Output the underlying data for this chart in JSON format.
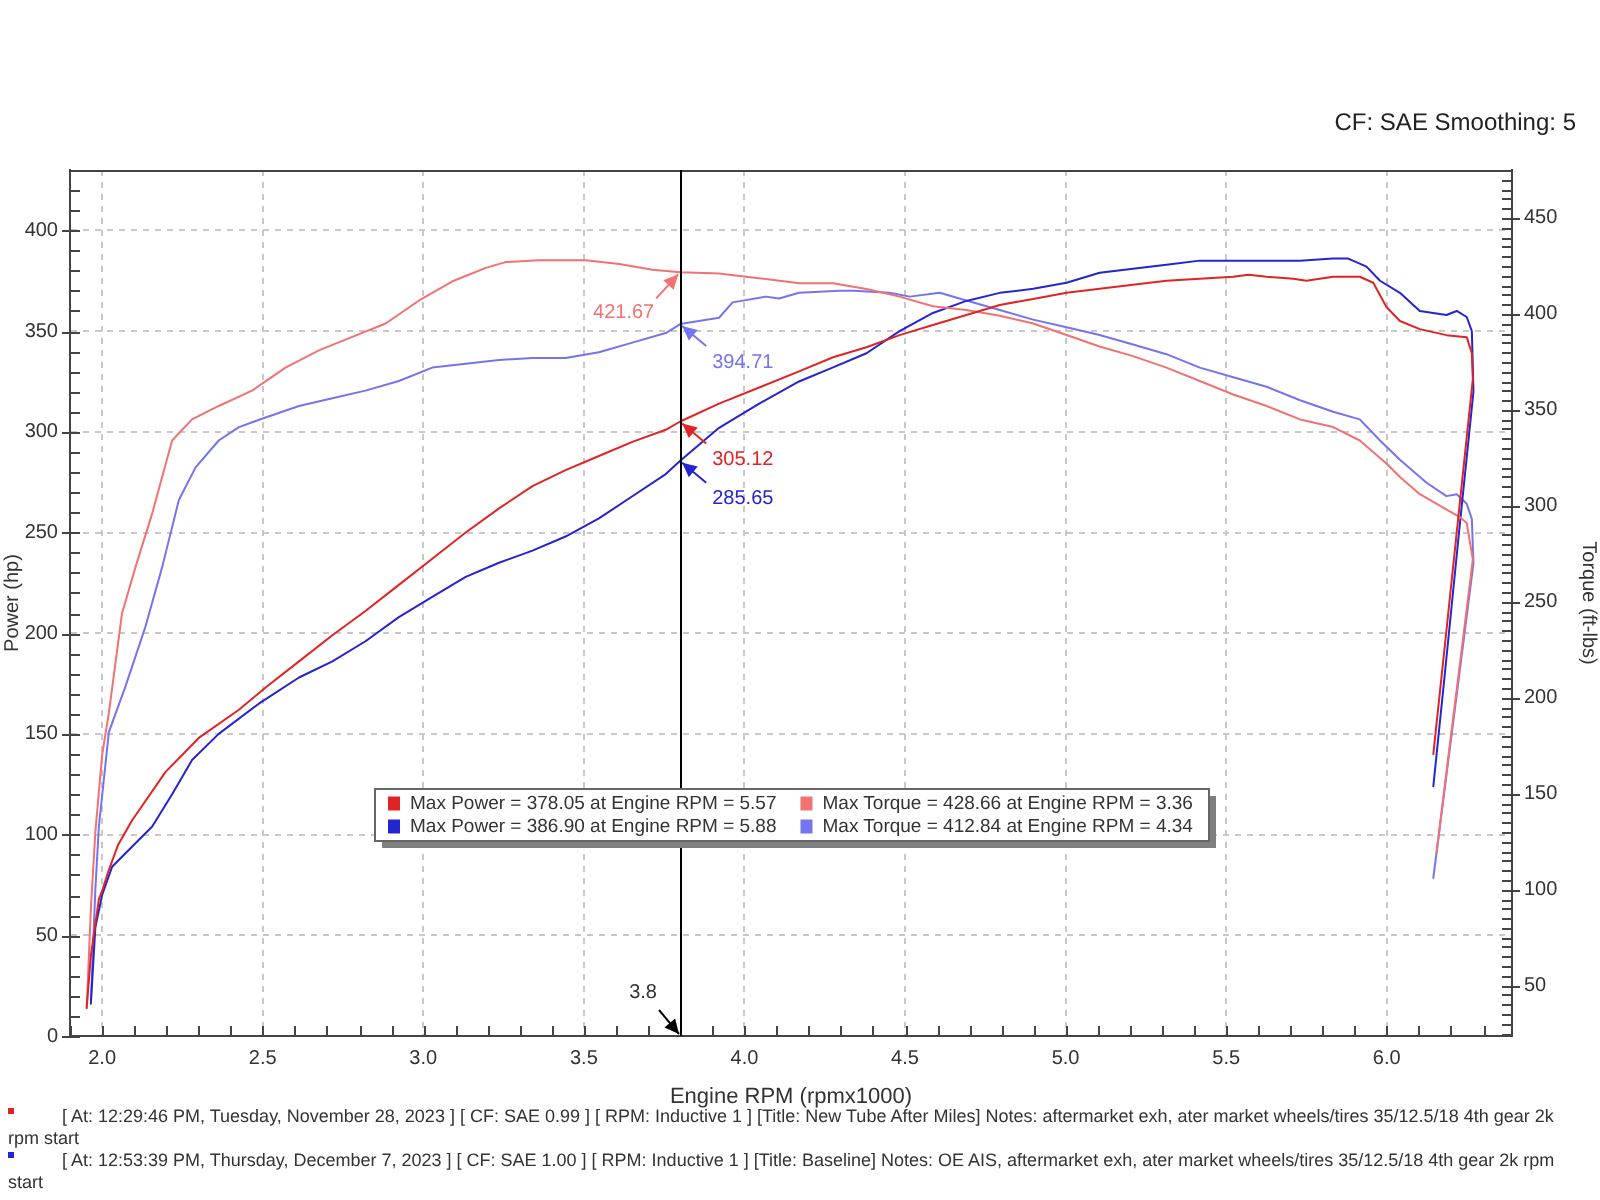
{
  "chart_data": {
    "type": "line",
    "subtitle": "CF: SAE Smoothing: 5",
    "xlabel": "Engine RPM (rpmx1000)",
    "ylabel": "Power (hp)",
    "y2label": "Torque (ft-lbs)",
    "xlim": [
      1.9,
      6.39
    ],
    "ylim": [
      0,
      430
    ],
    "y2lim": [
      23.6,
      475
    ],
    "xticks": [
      {
        "value": 1.9,
        "label": null
      },
      {
        "value": 2,
        "label": "2.0"
      },
      {
        "value": 2.1,
        "label": null
      },
      {
        "value": 2.2,
        "label": null
      },
      {
        "value": 2.3,
        "label": null
      },
      {
        "value": 2.4,
        "label": null
      },
      {
        "value": 2.5,
        "label": "2.5"
      },
      {
        "value": 2.6,
        "label": null
      },
      {
        "value": 2.7,
        "label": null
      },
      {
        "value": 2.8,
        "label": null
      },
      {
        "value": 2.9,
        "label": null
      },
      {
        "value": 3,
        "label": "3.0"
      },
      {
        "value": 3.1,
        "label": null
      },
      {
        "value": 3.2,
        "label": null
      },
      {
        "value": 3.3,
        "label": null
      },
      {
        "value": 3.4,
        "label": null
      },
      {
        "value": 3.5,
        "label": "3.5"
      },
      {
        "value": 3.6,
        "label": null
      },
      {
        "value": 3.7,
        "label": null
      },
      {
        "value": 3.8,
        "label": null
      },
      {
        "value": 3.9,
        "label": null
      },
      {
        "value": 4,
        "label": "4.0"
      },
      {
        "value": 4.1,
        "label": null
      },
      {
        "value": 4.2,
        "label": null
      },
      {
        "value": 4.3,
        "label": null
      },
      {
        "value": 4.4,
        "label": null
      },
      {
        "value": 4.5,
        "label": "4.5"
      },
      {
        "value": 4.6,
        "label": null
      },
      {
        "value": 4.7,
        "label": null
      },
      {
        "value": 4.8,
        "label": null
      },
      {
        "value": 4.9,
        "label": null
      },
      {
        "value": 5,
        "label": "5.0"
      },
      {
        "value": 5.1,
        "label": null
      },
      {
        "value": 5.2,
        "label": null
      },
      {
        "value": 5.3,
        "label": null
      },
      {
        "value": 5.4,
        "label": null
      },
      {
        "value": 5.5,
        "label": "5.5"
      },
      {
        "value": 5.6,
        "label": null
      },
      {
        "value": 5.7,
        "label": null
      },
      {
        "value": 5.8,
        "label": null
      },
      {
        "value": 5.9,
        "label": null
      },
      {
        "value": 6,
        "label": "6.0"
      },
      {
        "value": 6.1,
        "label": null
      },
      {
        "value": 6.2,
        "label": null
      },
      {
        "value": 6.3,
        "label": null
      }
    ],
    "yticks": [
      0,
      {
        "value": 10,
        "label": null
      },
      {
        "value": 20,
        "label": null
      },
      {
        "value": 30,
        "label": null
      },
      {
        "value": 40,
        "label": null
      },
      50,
      {
        "value": 60,
        "label": null
      },
      {
        "value": 70,
        "label": null
      },
      {
        "value": 80,
        "label": null
      },
      {
        "value": 90,
        "label": null
      },
      100,
      {
        "value": 110,
        "label": null
      },
      {
        "value": 120,
        "label": null
      },
      {
        "value": 130,
        "label": null
      },
      {
        "value": 140,
        "label": null
      },
      150,
      {
        "value": 160,
        "label": null
      },
      {
        "value": 170,
        "label": null
      },
      {
        "value": 180,
        "label": null
      },
      {
        "value": 190,
        "label": null
      },
      200,
      {
        "value": 210,
        "label": null
      },
      {
        "value": 220,
        "label": null
      },
      {
        "value": 230,
        "label": null
      },
      {
        "value": 240,
        "label": null
      },
      250,
      {
        "value": 260,
        "label": null
      },
      {
        "value": 270,
        "label": null
      },
      {
        "value": 280,
        "label": null
      },
      {
        "value": 290,
        "label": null
      },
      300,
      {
        "value": 310,
        "label": null
      },
      {
        "value": 320,
        "label": null
      },
      {
        "value": 330,
        "label": null
      },
      {
        "value": 340,
        "label": null
      },
      350,
      {
        "value": 360,
        "label": null
      },
      {
        "value": 370,
        "label": null
      },
      {
        "value": 380,
        "label": null
      },
      {
        "value": 390,
        "label": null
      },
      400,
      {
        "value": 410,
        "label": null
      },
      {
        "value": 420,
        "label": null
      },
      {
        "value": 430,
        "label": null
      }
    ],
    "y2ticks": [
      {
        "value": 25,
        "label": null
      },
      {
        "value": 30,
        "label": null
      },
      {
        "value": 35,
        "label": null
      },
      {
        "value": 40,
        "label": null
      },
      {
        "value": 45,
        "label": null
      },
      50,
      {
        "value": 55,
        "label": null
      },
      {
        "value": 60,
        "label": null
      },
      {
        "value": 65,
        "label": null
      },
      {
        "value": 70,
        "label": null
      },
      {
        "value": 75,
        "label": null
      },
      {
        "value": 80,
        "label": null
      },
      {
        "value": 85,
        "label": null
      },
      {
        "value": 90,
        "label": null
      },
      {
        "value": 95,
        "label": null
      },
      100,
      {
        "value": 105,
        "label": null
      },
      {
        "value": 110,
        "label": null
      },
      {
        "value": 115,
        "label": null
      },
      {
        "value": 120,
        "label": null
      },
      {
        "value": 125,
        "label": null
      },
      {
        "value": 130,
        "label": null
      },
      {
        "value": 135,
        "label": null
      },
      {
        "value": 140,
        "label": null
      },
      {
        "value": 145,
        "label": null
      },
      150,
      {
        "value": 155,
        "label": null
      },
      {
        "value": 160,
        "label": null
      },
      {
        "value": 165,
        "label": null
      },
      {
        "value": 170,
        "label": null
      },
      {
        "value": 175,
        "label": null
      },
      {
        "value": 180,
        "label": null
      },
      {
        "value": 185,
        "label": null
      },
      {
        "value": 190,
        "label": null
      },
      {
        "value": 195,
        "label": null
      },
      200,
      {
        "value": 205,
        "label": null
      },
      {
        "value": 210,
        "label": null
      },
      {
        "value": 215,
        "label": null
      },
      {
        "value": 220,
        "label": null
      },
      {
        "value": 225,
        "label": null
      },
      {
        "value": 230,
        "label": null
      },
      {
        "value": 235,
        "label": null
      },
      {
        "value": 240,
        "label": null
      },
      {
        "value": 245,
        "label": null
      },
      250,
      {
        "value": 255,
        "label": null
      },
      {
        "value": 260,
        "label": null
      },
      {
        "value": 265,
        "label": null
      },
      {
        "value": 270,
        "label": null
      },
      {
        "value": 275,
        "label": null
      },
      {
        "value": 280,
        "label": null
      },
      {
        "value": 285,
        "label": null
      },
      {
        "value": 290,
        "label": null
      },
      {
        "value": 295,
        "label": null
      },
      300,
      {
        "value": 305,
        "label": null
      },
      {
        "value": 310,
        "label": null
      },
      {
        "value": 315,
        "label": null
      },
      {
        "value": 320,
        "label": null
      },
      {
        "value": 325,
        "label": null
      },
      {
        "value": 330,
        "label": null
      },
      {
        "value": 335,
        "label": null
      },
      {
        "value": 340,
        "label": null
      },
      {
        "value": 345,
        "label": null
      },
      350,
      {
        "value": 355,
        "label": null
      },
      {
        "value": 360,
        "label": null
      },
      {
        "value": 365,
        "label": null
      },
      {
        "value": 370,
        "label": null
      },
      {
        "value": 375,
        "label": null
      },
      {
        "value": 380,
        "label": null
      },
      {
        "value": 385,
        "label": null
      },
      {
        "value": 390,
        "label": null
      },
      {
        "value": 395,
        "label": null
      },
      400,
      {
        "value": 405,
        "label": null
      },
      {
        "value": 410,
        "label": null
      },
      {
        "value": 415,
        "label": null
      },
      {
        "value": 420,
        "label": null
      },
      {
        "value": 425,
        "label": null
      },
      {
        "value": 430,
        "label": null
      },
      {
        "value": 435,
        "label": null
      },
      {
        "value": 440,
        "label": null
      },
      {
        "value": 445,
        "label": null
      },
      450,
      {
        "value": 455,
        "label": null
      },
      {
        "value": 460,
        "label": null
      },
      {
        "value": 465,
        "label": null
      },
      {
        "value": 470,
        "label": null
      },
      {
        "value": 475,
        "label": null
      }
    ],
    "grid": true,
    "legend": "bottom",
    "marker": "none",
    "line_style": "solid",
    "series": [
      {
        "name": "Max Power = 378.05 at Engine RPM = 5.57",
        "color": "#e02424",
        "x": [
          1.952,
          1.965,
          1.99,
          2.0,
          2.02,
          2.05,
          2.093,
          2.197,
          2.301,
          2.426,
          2.509,
          2.613,
          2.717,
          2.82,
          2.924,
          3.028,
          3.132,
          3.236,
          3.34,
          3.443,
          3.547,
          3.651,
          3.755,
          3.8,
          3.921,
          4.046,
          4.17,
          4.276,
          4.38,
          4.483,
          4.587,
          4.691,
          4.795,
          4.899,
          5.003,
          5.106,
          5.21,
          5.314,
          5.418,
          5.522,
          5.57,
          5.626,
          5.709,
          5.75,
          5.833,
          5.916,
          5.958,
          5.999,
          6.041,
          6.103,
          6.186,
          6.249,
          6.265,
          6.268,
          6.231,
          6.185,
          6.145
        ],
        "values": [
          14,
          40,
          68,
          72,
          82,
          95,
          107,
          131,
          148,
          162,
          173,
          186,
          199,
          211,
          224,
          237,
          250,
          262,
          273,
          281,
          288,
          295,
          301,
          305.12,
          314,
          322,
          330,
          337,
          342,
          348,
          353,
          358,
          363,
          366,
          369,
          371,
          373,
          375,
          376,
          377,
          378,
          377,
          376,
          375,
          377,
          377,
          374,
          362,
          355,
          351,
          348,
          347,
          339,
          326,
          270,
          200,
          140
        ],
        "value_labels": [
          null,
          null,
          null,
          null,
          null,
          null,
          null,
          null,
          null,
          null,
          null,
          null,
          null,
          null,
          null,
          null,
          null,
          null,
          null,
          null,
          null,
          null,
          null,
          "305.12",
          null,
          null,
          null,
          null,
          null,
          null,
          null,
          null,
          null,
          null,
          null,
          null,
          null,
          null,
          null,
          null,
          null,
          null,
          null,
          null,
          null,
          null,
          null,
          null,
          null,
          null,
          null,
          null,
          null,
          null,
          null,
          null,
          null
        ]
      },
      {
        "name": "Max Torque = 428.66 at Engine RPM = 3.36",
        "color": "#f07272",
        "axis": "y2",
        "x": [
          1.952,
          1.965,
          1.979,
          2.0,
          2.021,
          2.062,
          2.104,
          2.156,
          2.218,
          2.28,
          2.363,
          2.467,
          2.571,
          2.675,
          2.779,
          2.883,
          2.987,
          3.091,
          3.195,
          3.256,
          3.36,
          3.506,
          3.61,
          3.714,
          3.8,
          3.921,
          4.025,
          4.17,
          4.276,
          4.38,
          4.483,
          4.587,
          4.691,
          4.795,
          4.899,
          5.003,
          5.106,
          5.21,
          5.314,
          5.418,
          5.522,
          5.626,
          5.73,
          5.833,
          5.916,
          5.999,
          6.041,
          6.103,
          6.165,
          6.228,
          6.249,
          6.268,
          6.237,
          6.196,
          6.155
        ],
        "values": [
          38,
          90,
          130,
          170,
          192,
          244,
          268,
          296,
          334,
          345,
          352,
          360,
          372,
          381,
          388,
          395,
          407,
          417,
          424,
          427,
          428,
          428,
          426,
          423,
          421.67,
          421,
          419,
          416,
          416,
          413,
          409,
          404,
          402,
          399,
          395,
          389,
          383,
          378,
          372,
          365,
          358,
          352,
          345,
          341,
          334,
          322,
          315,
          306,
          300,
          294,
          291,
          272,
          230,
          175,
          119
        ],
        "value_labels": [
          null,
          null,
          null,
          null,
          null,
          null,
          null,
          null,
          null,
          null,
          null,
          null,
          null,
          null,
          null,
          null,
          null,
          null,
          null,
          null,
          null,
          null,
          null,
          null,
          "421.67",
          null,
          null,
          null,
          null,
          null,
          null,
          null,
          null,
          null,
          null,
          null,
          null,
          null,
          null,
          null,
          null,
          null,
          null,
          null,
          null,
          null,
          null,
          null,
          null,
          null,
          null,
          null,
          null,
          null,
          null
        ]
      },
      {
        "name": "Max Power = 386.90 at Engine RPM = 5.88",
        "color": "#2424d0",
        "x": [
          1.965,
          1.979,
          2.0,
          2.031,
          2.093,
          2.156,
          2.218,
          2.28,
          2.363,
          2.488,
          2.613,
          2.717,
          2.82,
          2.924,
          3.028,
          3.132,
          3.236,
          3.34,
          3.443,
          3.547,
          3.651,
          3.755,
          3.8,
          3.921,
          4.046,
          4.17,
          4.276,
          4.38,
          4.483,
          4.587,
          4.691,
          4.795,
          4.899,
          5.003,
          5.106,
          5.21,
          5.314,
          5.418,
          5.522,
          5.626,
          5.73,
          5.833,
          5.88,
          5.937,
          5.979,
          6.041,
          6.103,
          6.186,
          6.218,
          6.249,
          6.265,
          6.27,
          6.225,
          6.181,
          6.145
        ],
        "values": [
          16,
          54,
          70,
          84,
          94,
          104,
          120,
          137,
          150,
          165,
          178,
          186,
          196,
          208,
          218,
          228,
          235,
          241,
          248,
          257,
          268,
          279,
          285.65,
          302,
          314,
          325,
          332,
          339,
          350,
          359,
          365,
          369,
          371,
          374,
          379,
          381,
          383,
          385,
          385,
          385,
          385,
          386,
          386,
          382,
          375,
          369,
          360,
          358,
          360,
          357,
          350,
          320,
          250,
          180,
          124
        ],
        "value_labels": [
          null,
          null,
          null,
          null,
          null,
          null,
          null,
          null,
          null,
          null,
          null,
          null,
          null,
          null,
          null,
          null,
          null,
          null,
          null,
          null,
          null,
          null,
          "285.65",
          null,
          null,
          null,
          null,
          null,
          null,
          null,
          null,
          null,
          null,
          null,
          null,
          null,
          null,
          null,
          null,
          null,
          null,
          null,
          null,
          null,
          null,
          null,
          null,
          null,
          null,
          null,
          null,
          null,
          null,
          null,
          null
        ]
      },
      {
        "name": "Max Torque = 412.84 at Engine RPM = 4.34",
        "color": "#7474ee",
        "axis": "y2",
        "x": [
          1.965,
          1.979,
          1.99,
          2.021,
          2.073,
          2.135,
          2.187,
          2.239,
          2.291,
          2.363,
          2.426,
          2.509,
          2.613,
          2.717,
          2.82,
          2.924,
          3.028,
          3.132,
          3.236,
          3.34,
          3.443,
          3.547,
          3.651,
          3.755,
          3.8,
          3.921,
          3.963,
          4.067,
          4.108,
          4.17,
          4.296,
          4.34,
          4.452,
          4.515,
          4.608,
          4.691,
          4.795,
          4.899,
          5.003,
          5.106,
          5.21,
          5.314,
          5.418,
          5.522,
          5.626,
          5.73,
          5.833,
          5.916,
          5.979,
          6.041,
          6.124,
          6.186,
          6.218,
          6.249,
          6.265,
          6.27,
          6.209,
          6.145
        ],
        "values": [
          42,
          100,
          133,
          182,
          206,
          237,
          268,
          303,
          320,
          334,
          341,
          346,
          352,
          356,
          360,
          365,
          372,
          374,
          376,
          377,
          377,
          380,
          385,
          390,
          394.71,
          398,
          406,
          409,
          408,
          411,
          412,
          412,
          411,
          409,
          411,
          407,
          402,
          397,
          393,
          389,
          384,
          379,
          372,
          367,
          362,
          355,
          349,
          345,
          334,
          324,
          312,
          305,
          306,
          301,
          293,
          270,
          190,
          106
        ],
        "value_labels": [
          null,
          null,
          null,
          null,
          null,
          null,
          null,
          null,
          null,
          null,
          null,
          null,
          null,
          null,
          null,
          null,
          null,
          null,
          null,
          null,
          null,
          null,
          null,
          null,
          "394.71",
          null,
          null,
          null,
          null,
          null,
          null,
          null,
          null,
          null,
          null,
          null,
          null,
          null,
          null,
          null,
          null,
          null,
          null,
          null,
          null,
          null,
          null,
          null,
          null,
          null,
          null,
          null,
          null,
          null,
          null,
          null,
          null,
          null
        ]
      }
    ],
    "ref_lines": [
      {
        "axis": "x",
        "value": 3.8,
        "label": "3.8",
        "color": "#000000"
      }
    ],
    "annotations": [
      "[ At: 12:29:46 PM, Tuesday, November 28, 2023 ] [ CF: SAE 0.99 ] [ RPM: Inductive 1 ] [Title: New Tube After Miles]  Notes: aftermarket exh, ater market wheels/tires 35/12.5/18 4th gear 2k rpm start",
      "[ At: 12:53:39 PM, Thursday, December 7, 2023 ] [ CF: SAE 1.00 ] [ RPM: Inductive 1 ] [Title: Baseline]  Notes: OE AIS, aftermarket exh, ater market wheels/tires 35/12.5/18 4th gear 2k rpm start"
    ]
  }
}
